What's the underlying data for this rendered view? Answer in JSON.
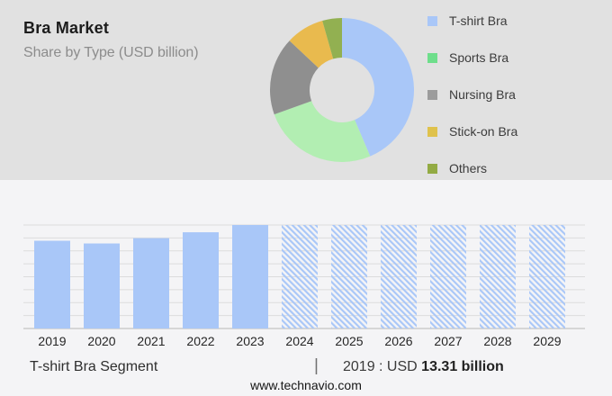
{
  "header": {
    "title": "Bra Market",
    "subtitle": "Share by Type (USD billion)"
  },
  "chart_data": [
    {
      "type": "pie",
      "subtype": "donut",
      "title": "Bra Market Share by Type (USD billion)",
      "legend_position": "right",
      "slices": [
        {
          "label": "T-shirt Bra",
          "percent": 43.6,
          "color": "#a9c7f8",
          "legend_color": "#a9c7f8"
        },
        {
          "label": "Sports Bra",
          "percent": 25.9,
          "color": "#b2eeb2",
          "legend_color": "#6ede8b"
        },
        {
          "label": "Nursing Bra",
          "percent": 17.5,
          "color": "#8f8f8f",
          "legend_color": "#9c9c9c"
        },
        {
          "label": "Stick-on Bra",
          "percent": 8.6,
          "color": "#e9ba4e",
          "legend_color": "#dfc24c"
        },
        {
          "label": "Others",
          "percent": 4.4,
          "color": "#92b051",
          "legend_color": "#93ab44"
        }
      ]
    },
    {
      "type": "bar",
      "title": "",
      "xlabel": "",
      "ylabel": "",
      "unit": "USD billion",
      "categories": [
        "2019",
        "2020",
        "2021",
        "2022",
        "2023",
        "2024",
        "2025",
        "2026",
        "2027",
        "2028",
        "2029"
      ],
      "values": [
        13.31,
        12.9,
        13.7,
        14.6,
        15.7,
        15.7,
        15.7,
        15.7,
        15.7,
        15.7,
        15.7
      ],
      "known_point": "2019 : USD 13.31 billion",
      "forecast_start_index": 5,
      "forecast_style": "diagonal-hatch",
      "bar_color": "#a9c7f8",
      "ylim": [
        0,
        15.7
      ],
      "grid": true,
      "gridline_count": 9
    }
  ],
  "footer": {
    "segment_label": "T-shirt Bra Segment",
    "separator": "|",
    "callout_prefix": "2019 : USD",
    "callout_value": "13.31 billion",
    "website": "www.technavio.com"
  },
  "colors": {
    "top_panel_bg": "#e1e1e1",
    "bottom_panel_bg": "#f4f4f6",
    "gridline": "#dcdcdc",
    "axis_line": "#c3c3c3",
    "year_label": "#262626"
  }
}
